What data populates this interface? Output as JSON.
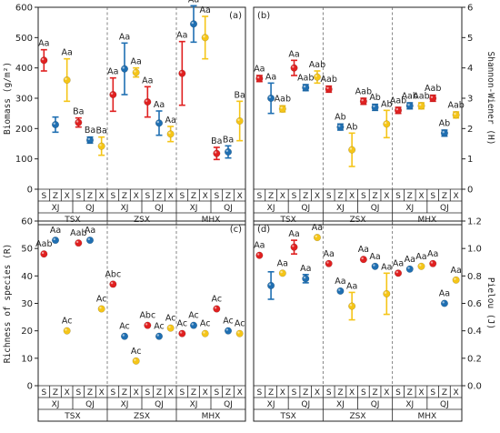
{
  "colors": {
    "S": "#e02020",
    "Z": "#1f6fb2",
    "X": "#f5c518"
  },
  "groups": [
    "TSX",
    "ZSX",
    "MHX"
  ],
  "subgroups": [
    "XJ",
    "QJ"
  ],
  "species": [
    "S",
    "Z",
    "X"
  ],
  "chart_data": [
    {
      "type": "scatter",
      "panel": "(a)",
      "side": "left",
      "ylabel": "Biomass (g/m²)",
      "ylim": [
        0,
        600
      ],
      "yticks": [
        0,
        100,
        200,
        300,
        400,
        500,
        600
      ],
      "points": [
        {
          "g": 0,
          "s": 0,
          "sp": 0,
          "y": 425,
          "err": 35,
          "ann": "Aa"
        },
        {
          "g": 0,
          "s": 0,
          "sp": 1,
          "y": 213,
          "err": 25,
          "ann": ""
        },
        {
          "g": 0,
          "s": 0,
          "sp": 2,
          "y": 360,
          "err": 70,
          "ann": "Aa"
        },
        {
          "g": 0,
          "s": 1,
          "sp": 0,
          "y": 220,
          "err": 15,
          "ann": "Ba"
        },
        {
          "g": 0,
          "s": 1,
          "sp": 1,
          "y": 162,
          "err": 10,
          "ann": "Ba"
        },
        {
          "g": 0,
          "s": 1,
          "sp": 2,
          "y": 142,
          "err": 30,
          "ann": "Ba"
        },
        {
          "g": 1,
          "s": 0,
          "sp": 0,
          "y": 312,
          "err": 55,
          "ann": "Aa"
        },
        {
          "g": 1,
          "s": 0,
          "sp": 1,
          "y": 397,
          "err": 85,
          "ann": "Aa"
        },
        {
          "g": 1,
          "s": 0,
          "sp": 2,
          "y": 385,
          "err": 15,
          "ann": "Aa"
        },
        {
          "g": 1,
          "s": 1,
          "sp": 0,
          "y": 288,
          "err": 50,
          "ann": "Aa"
        },
        {
          "g": 1,
          "s": 1,
          "sp": 1,
          "y": 218,
          "err": 40,
          "ann": "Aa"
        },
        {
          "g": 1,
          "s": 1,
          "sp": 2,
          "y": 182,
          "err": 25,
          "ann": "Aa"
        },
        {
          "g": 2,
          "s": 0,
          "sp": 0,
          "y": 382,
          "err": 105,
          "ann": "Aa"
        },
        {
          "g": 2,
          "s": 0,
          "sp": 1,
          "y": 545,
          "err": 60,
          "ann": "Aa"
        },
        {
          "g": 2,
          "s": 0,
          "sp": 2,
          "y": 500,
          "err": 70,
          "ann": "Aa"
        },
        {
          "g": 2,
          "s": 1,
          "sp": 0,
          "y": 118,
          "err": 20,
          "ann": "Ba"
        },
        {
          "g": 2,
          "s": 1,
          "sp": 1,
          "y": 123,
          "err": 20,
          "ann": "Ba"
        },
        {
          "g": 2,
          "s": 1,
          "sp": 2,
          "y": 225,
          "err": 65,
          "ann": "Ba"
        }
      ]
    },
    {
      "type": "scatter",
      "panel": "(b)",
      "side": "right",
      "ylabel": "Shannon-Wiener (H)",
      "ylim": [
        0,
        6
      ],
      "yticks": [
        0,
        1,
        2,
        3,
        4,
        5,
        6
      ],
      "points": [
        {
          "g": 0,
          "s": 0,
          "sp": 0,
          "y": 3.65,
          "err": 0.1,
          "ann": "Aa"
        },
        {
          "g": 0,
          "s": 0,
          "sp": 1,
          "y": 3.0,
          "err": 0.5,
          "ann": "Aa"
        },
        {
          "g": 0,
          "s": 0,
          "sp": 2,
          "y": 2.65,
          "err": 0.1,
          "ann": "Aab"
        },
        {
          "g": 0,
          "s": 1,
          "sp": 0,
          "y": 4.0,
          "err": 0.25,
          "ann": "Aa"
        },
        {
          "g": 0,
          "s": 1,
          "sp": 1,
          "y": 3.35,
          "err": 0.1,
          "ann": "Aab"
        },
        {
          "g": 0,
          "s": 1,
          "sp": 2,
          "y": 3.7,
          "err": 0.2,
          "ann": "Aab"
        },
        {
          "g": 1,
          "s": 0,
          "sp": 0,
          "y": 3.3,
          "err": 0.1,
          "ann": "Aab"
        },
        {
          "g": 1,
          "s": 0,
          "sp": 1,
          "y": 2.05,
          "err": 0.1,
          "ann": "Ab"
        },
        {
          "g": 1,
          "s": 0,
          "sp": 2,
          "y": 1.3,
          "err": 0.55,
          "ann": "Ab"
        },
        {
          "g": 1,
          "s": 1,
          "sp": 0,
          "y": 2.9,
          "err": 0.1,
          "ann": "Aab"
        },
        {
          "g": 1,
          "s": 1,
          "sp": 1,
          "y": 2.7,
          "err": 0.1,
          "ann": "Ab"
        },
        {
          "g": 1,
          "s": 1,
          "sp": 2,
          "y": 2.15,
          "err": 0.45,
          "ann": "Ab"
        },
        {
          "g": 2,
          "s": 0,
          "sp": 0,
          "y": 2.6,
          "err": 0.1,
          "ann": "Aab"
        },
        {
          "g": 2,
          "s": 0,
          "sp": 1,
          "y": 2.75,
          "err": 0.1,
          "ann": "Aab"
        },
        {
          "g": 2,
          "s": 0,
          "sp": 2,
          "y": 2.75,
          "err": 0.1,
          "ann": "Aab"
        },
        {
          "g": 2,
          "s": 1,
          "sp": 0,
          "y": 3.0,
          "err": 0.1,
          "ann": "Aab"
        },
        {
          "g": 2,
          "s": 1,
          "sp": 1,
          "y": 1.85,
          "err": 0.1,
          "ann": "Ab"
        },
        {
          "g": 2,
          "s": 1,
          "sp": 2,
          "y": 2.45,
          "err": 0.1,
          "ann": "Aab"
        }
      ]
    },
    {
      "type": "scatter",
      "panel": "(c)",
      "side": "left",
      "ylabel": "Richness of species (R)",
      "ylim": [
        0,
        60
      ],
      "yticks": [
        0,
        10,
        20,
        30,
        40,
        50,
        60
      ],
      "points": [
        {
          "g": 0,
          "s": 0,
          "sp": 0,
          "y": 48,
          "err": 0,
          "ann": "Aab"
        },
        {
          "g": 0,
          "s": 0,
          "sp": 1,
          "y": 53,
          "err": 0,
          "ann": "Aa"
        },
        {
          "g": 0,
          "s": 0,
          "sp": 2,
          "y": 20,
          "err": 0,
          "ann": "Ac"
        },
        {
          "g": 0,
          "s": 1,
          "sp": 0,
          "y": 52,
          "err": 0,
          "ann": "Aab"
        },
        {
          "g": 0,
          "s": 1,
          "sp": 1,
          "y": 53,
          "err": 0,
          "ann": "Aa"
        },
        {
          "g": 0,
          "s": 1,
          "sp": 2,
          "y": 28,
          "err": 0,
          "ann": "Ac"
        },
        {
          "g": 1,
          "s": 0,
          "sp": 0,
          "y": 37,
          "err": 0,
          "ann": "Abc"
        },
        {
          "g": 1,
          "s": 0,
          "sp": 1,
          "y": 18,
          "err": 0,
          "ann": "Ac"
        },
        {
          "g": 1,
          "s": 0,
          "sp": 2,
          "y": 9,
          "err": 0,
          "ann": "Ac"
        },
        {
          "g": 1,
          "s": 1,
          "sp": 0,
          "y": 22,
          "err": 0,
          "ann": "Abc"
        },
        {
          "g": 1,
          "s": 1,
          "sp": 1,
          "y": 18,
          "err": 0,
          "ann": "Ac"
        },
        {
          "g": 1,
          "s": 1,
          "sp": 2,
          "y": 21,
          "err": 0,
          "ann": "Ac"
        },
        {
          "g": 2,
          "s": 0,
          "sp": 0,
          "y": 19,
          "err": 0,
          "ann": "Ac"
        },
        {
          "g": 2,
          "s": 0,
          "sp": 1,
          "y": 22,
          "err": 0,
          "ann": "Ac"
        },
        {
          "g": 2,
          "s": 0,
          "sp": 2,
          "y": 19,
          "err": 0,
          "ann": "Ac"
        },
        {
          "g": 2,
          "s": 1,
          "sp": 0,
          "y": 28,
          "err": 0,
          "ann": "Ac"
        },
        {
          "g": 2,
          "s": 1,
          "sp": 1,
          "y": 20,
          "err": 0,
          "ann": "Ac"
        },
        {
          "g": 2,
          "s": 1,
          "sp": 2,
          "y": 19,
          "err": 0,
          "ann": "Ac"
        }
      ]
    },
    {
      "type": "scatter",
      "panel": "(d)",
      "side": "right",
      "ylabel": "Pielou (J)",
      "ylim": [
        0,
        1.2
      ],
      "yticks": [
        0.0,
        0.2,
        0.4,
        0.6,
        0.8,
        1.0,
        1.2
      ],
      "points": [
        {
          "g": 0,
          "s": 0,
          "sp": 0,
          "y": 0.95,
          "err": 0,
          "ann": "Aa"
        },
        {
          "g": 0,
          "s": 0,
          "sp": 1,
          "y": 0.73,
          "err": 0.1,
          "ann": ""
        },
        {
          "g": 0,
          "s": 0,
          "sp": 2,
          "y": 0.82,
          "err": 0,
          "ann": "Aa"
        },
        {
          "g": 0,
          "s": 1,
          "sp": 0,
          "y": 1.01,
          "err": 0.05,
          "ann": "Aa"
        },
        {
          "g": 0,
          "s": 1,
          "sp": 1,
          "y": 0.78,
          "err": 0.03,
          "ann": "Aa"
        },
        {
          "g": 0,
          "s": 1,
          "sp": 2,
          "y": 1.08,
          "err": 0,
          "ann": "Aa"
        },
        {
          "g": 1,
          "s": 0,
          "sp": 0,
          "y": 0.89,
          "err": 0,
          "ann": "Aa"
        },
        {
          "g": 1,
          "s": 0,
          "sp": 1,
          "y": 0.69,
          "err": 0,
          "ann": "Aa"
        },
        {
          "g": 1,
          "s": 0,
          "sp": 2,
          "y": 0.58,
          "err": 0.1,
          "ann": "Aa"
        },
        {
          "g": 1,
          "s": 1,
          "sp": 0,
          "y": 0.92,
          "err": 0,
          "ann": "Aa"
        },
        {
          "g": 1,
          "s": 1,
          "sp": 1,
          "y": 0.87,
          "err": 0,
          "ann": "Aa"
        },
        {
          "g": 1,
          "s": 1,
          "sp": 2,
          "y": 0.67,
          "err": 0.15,
          "ann": "Aa"
        },
        {
          "g": 2,
          "s": 0,
          "sp": 0,
          "y": 0.82,
          "err": 0,
          "ann": "Aa"
        },
        {
          "g": 2,
          "s": 0,
          "sp": 1,
          "y": 0.85,
          "err": 0,
          "ann": "Aa"
        },
        {
          "g": 2,
          "s": 0,
          "sp": 2,
          "y": 0.87,
          "err": 0,
          "ann": "Aa"
        },
        {
          "g": 2,
          "s": 1,
          "sp": 0,
          "y": 0.89,
          "err": 0,
          "ann": "Aa"
        },
        {
          "g": 2,
          "s": 1,
          "sp": 1,
          "y": 0.6,
          "err": 0,
          "ann": "Aa"
        },
        {
          "g": 2,
          "s": 1,
          "sp": 2,
          "y": 0.77,
          "err": 0,
          "ann": "Aa"
        }
      ]
    }
  ]
}
